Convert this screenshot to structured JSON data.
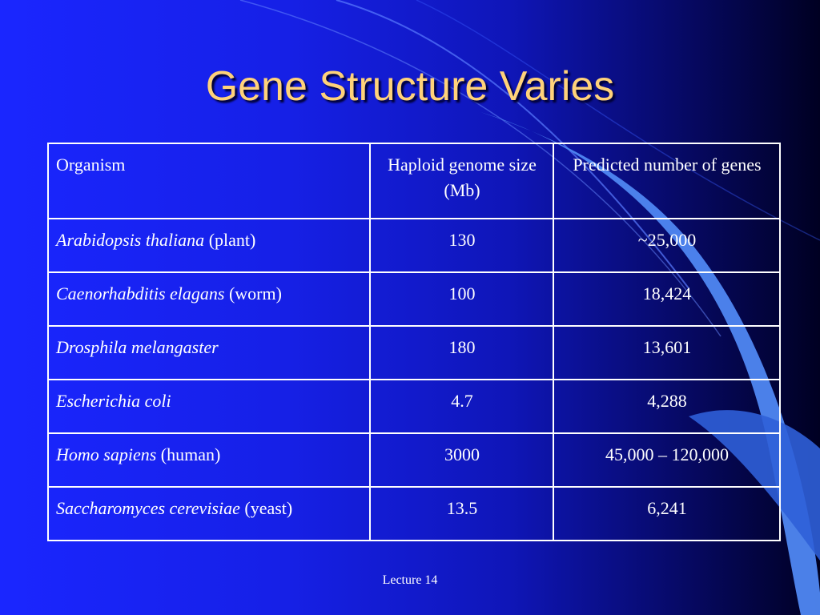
{
  "slide": {
    "title": "Gene Structure Varies",
    "footer": "Lecture 14"
  },
  "table": {
    "headers": [
      "Organism",
      "Haploid genome size (Mb)",
      "Predicted number of genes"
    ],
    "rows": [
      {
        "species": "Arabidopsis thaliana",
        "common": " (plant)",
        "genome": "130",
        "genes": "~25,000"
      },
      {
        "species": "Caenorhabditis elagans",
        "common": " (worm)",
        "genome": "100",
        "genes": "18,424"
      },
      {
        "species": "Drosphila melangaster",
        "common": "",
        "genome": "180",
        "genes": "13,601"
      },
      {
        "species": "Escherichia coli",
        "common": "",
        "genome": "4.7",
        "genes": "4,288"
      },
      {
        "species": "Homo sapiens",
        "common": " (human)",
        "genome": "3000",
        "genes": "45,000 – 120,000"
      },
      {
        "species": "Saccharomyces cerevisiae",
        "common": " (yeast)",
        "genome": "13.5",
        "genes": "6,241"
      }
    ]
  },
  "colors": {
    "title": "#ffd27a",
    "background_left": "#1a26ff",
    "background_right": "#000022",
    "table_border": "#ffffff"
  }
}
